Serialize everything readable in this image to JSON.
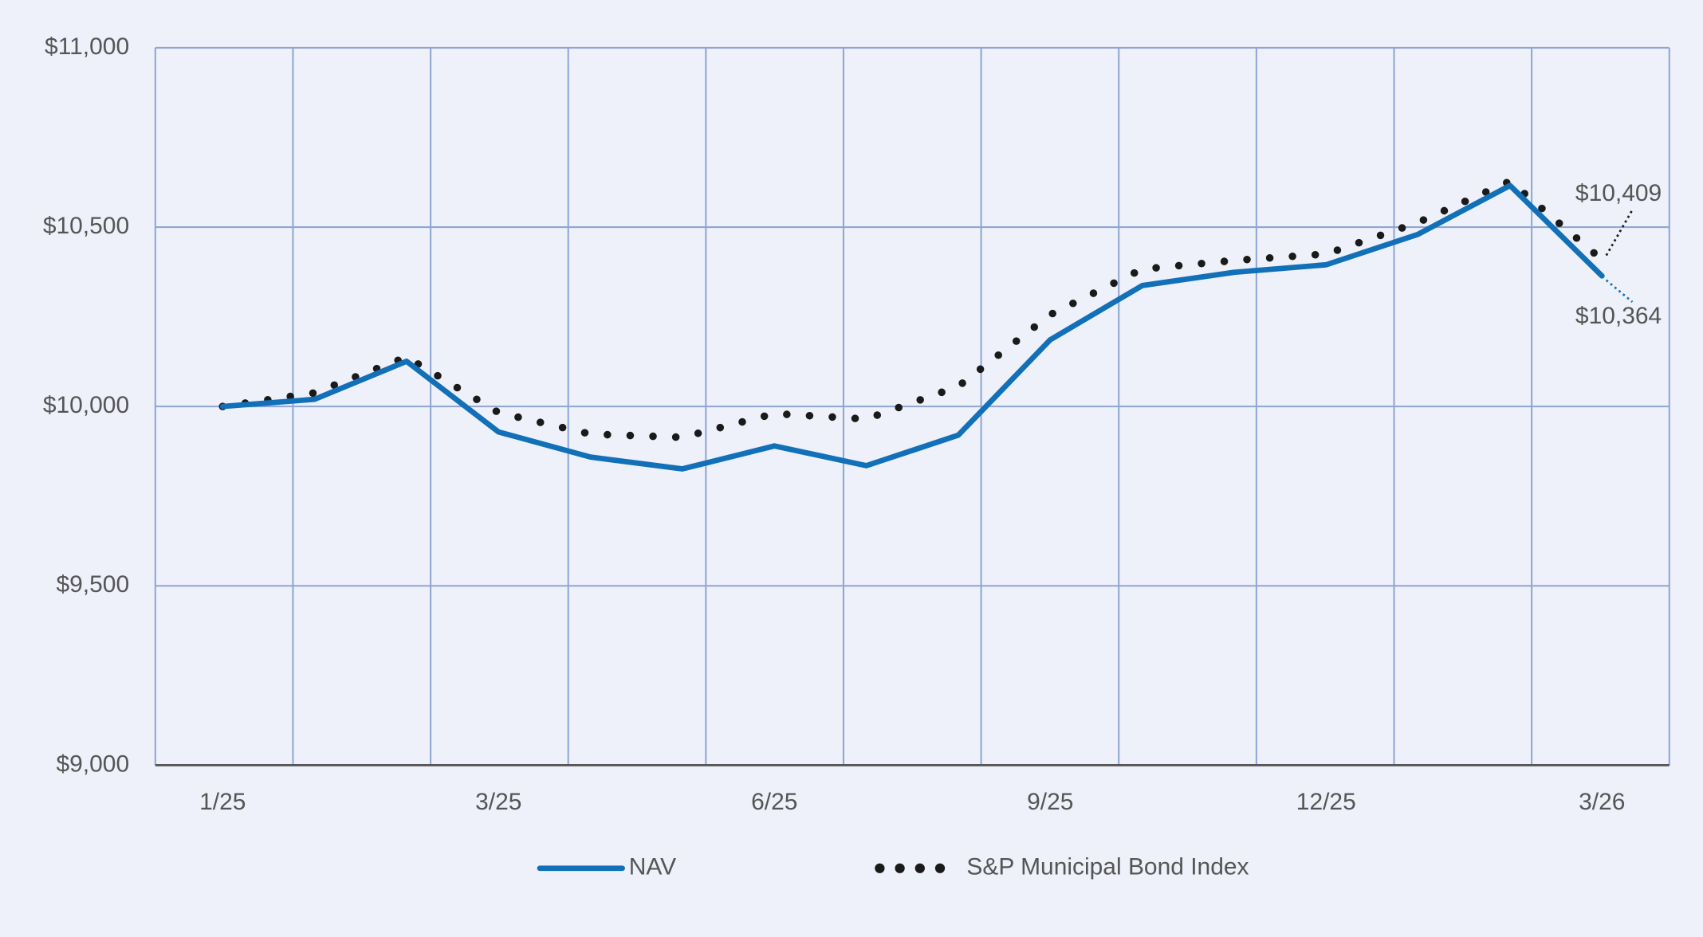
{
  "chart_data": {
    "type": "line",
    "categories": [
      "1/25",
      null,
      null,
      "3/25",
      null,
      null,
      "6/25",
      null,
      null,
      "9/25",
      null,
      null,
      "12/25",
      null,
      null,
      "3/26"
    ],
    "series": [
      {
        "name": "NAV",
        "color": "#1170b8",
        "style": "solid",
        "values": [
          10000,
          10020,
          10126,
          9929,
          9859,
          9826,
          9890,
          9835,
          9920,
          10186,
          10337,
          10374,
          10395,
          10480,
          10616,
          10364
        ],
        "value_labels": [
          null,
          null,
          null,
          null,
          null,
          null,
          null,
          null,
          null,
          null,
          null,
          null,
          null,
          null,
          null,
          "$10,364"
        ]
      },
      {
        "name": "S&P Municipal Bond Index",
        "color": "#1a1a1a",
        "style": "dotted",
        "values": [
          10000,
          10038,
          10138,
          9983,
          9923,
          9914,
          9980,
          9965,
          10056,
          10256,
          10383,
          10407,
          10425,
          10513,
          10628,
          10409
        ],
        "value_labels": [
          null,
          null,
          null,
          null,
          null,
          null,
          null,
          null,
          null,
          null,
          null,
          null,
          null,
          null,
          null,
          "$10,409"
        ]
      }
    ],
    "ylim": [
      9000,
      11000
    ],
    "yticks": [
      {
        "value": 9000,
        "label": "$9,000"
      },
      {
        "value": 9500,
        "label": "$9,500"
      },
      {
        "value": 10000,
        "label": "$10,000"
      },
      {
        "value": 10500,
        "label": "$10,500"
      },
      {
        "value": 11000,
        "label": "$11,000"
      }
    ],
    "grid": true
  }
}
